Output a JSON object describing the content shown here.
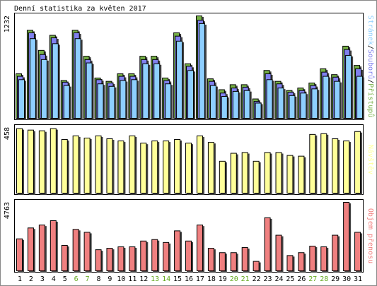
{
  "title": "Denní statistika za květen 2017",
  "colors": {
    "background": "#ffffff",
    "frame": "#000000",
    "weekday_label": "#000000",
    "weekend_label": "#66aa22",
    "pristupu": "#76b046",
    "souboru": "#8080ee",
    "stranek": "#8ecfff",
    "navstev": "#ffff99",
    "objem": "#f08080",
    "shadow": "#444444"
  },
  "legend": {
    "top_parts": [
      {
        "text": "Stránek",
        "color": "#8ecfff"
      },
      {
        "text": "/",
        "color": "#000000"
      },
      {
        "text": "Souborů",
        "color": "#8080ee"
      },
      {
        "text": "/",
        "color": "#000000"
      },
      {
        "text": "Přístupů",
        "color": "#76b046"
      }
    ],
    "middle": "Návštěv",
    "bottom": "Objem přenosu"
  },
  "chart_data": [
    {
      "type": "bar",
      "title": "Denní statistika za květen 2017",
      "ylabel": "1232",
      "ylim": [
        0,
        1232
      ],
      "categories": [
        "1",
        "2",
        "3",
        "4",
        "5",
        "6",
        "7",
        "8",
        "9",
        "10",
        "11",
        "12",
        "13",
        "14",
        "15",
        "16",
        "17",
        "18",
        "19",
        "20",
        "21",
        "22",
        "23",
        "24",
        "25",
        "26",
        "27",
        "28",
        "29",
        "30",
        "31"
      ],
      "weekend_days": [
        "6",
        "7",
        "13",
        "14",
        "20",
        "21",
        "27",
        "28"
      ],
      "series": [
        {
          "name": "Přístupů",
          "values": [
            540,
            1060,
            820,
            1000,
            460,
            1060,
            750,
            490,
            450,
            540,
            540,
            750,
            750,
            490,
            1030,
            660,
            1232,
            480,
            350,
            410,
            410,
            240,
            580,
            450,
            340,
            370,
            430,
            600,
            530,
            870,
            640
          ]
        },
        {
          "name": "Souborů",
          "values": [
            510,
            1030,
            770,
            970,
            440,
            1030,
            710,
            470,
            430,
            510,
            510,
            710,
            710,
            460,
            990,
            630,
            1180,
            450,
            310,
            370,
            380,
            210,
            540,
            420,
            320,
            340,
            400,
            560,
            500,
            830,
            600
          ]
        },
        {
          "name": "Stránek",
          "values": [
            470,
            960,
            710,
            900,
            400,
            960,
            670,
            420,
            390,
            460,
            470,
            660,
            660,
            420,
            930,
            580,
            1140,
            400,
            270,
            330,
            340,
            190,
            470,
            370,
            280,
            310,
            360,
            510,
            450,
            760,
            510
          ]
        }
      ]
    },
    {
      "type": "bar",
      "ylabel": "458",
      "ylim": [
        0,
        458
      ],
      "categories": [
        "1",
        "2",
        "3",
        "4",
        "5",
        "6",
        "7",
        "8",
        "9",
        "10",
        "11",
        "12",
        "13",
        "14",
        "15",
        "16",
        "17",
        "18",
        "19",
        "20",
        "21",
        "22",
        "23",
        "24",
        "25",
        "26",
        "27",
        "28",
        "29",
        "30",
        "31"
      ],
      "series": [
        {
          "name": "Návštěv",
          "values": [
            450,
            440,
            435,
            450,
            375,
            400,
            385,
            400,
            380,
            365,
            400,
            350,
            365,
            365,
            375,
            350,
            400,
            355,
            225,
            280,
            285,
            225,
            285,
            285,
            265,
            260,
            410,
            415,
            380,
            365,
            430
          ]
        }
      ]
    },
    {
      "type": "bar",
      "ylabel": "4763",
      "ylim": [
        0,
        4763
      ],
      "categories": [
        "1",
        "2",
        "3",
        "4",
        "5",
        "6",
        "7",
        "8",
        "9",
        "10",
        "11",
        "12",
        "13",
        "14",
        "15",
        "16",
        "17",
        "18",
        "19",
        "20",
        "21",
        "22",
        "23",
        "24",
        "25",
        "26",
        "27",
        "28",
        "29",
        "30",
        "31"
      ],
      "series": [
        {
          "name": "Objem přenosu",
          "values": [
            2250,
            3000,
            3200,
            3500,
            1800,
            2900,
            2700,
            1500,
            1600,
            1700,
            1700,
            2100,
            2200,
            2000,
            2800,
            2100,
            3200,
            1600,
            1300,
            1300,
            1650,
            700,
            3700,
            2500,
            1100,
            1300,
            1750,
            1700,
            2500,
            4763,
            2700
          ]
        }
      ]
    }
  ]
}
